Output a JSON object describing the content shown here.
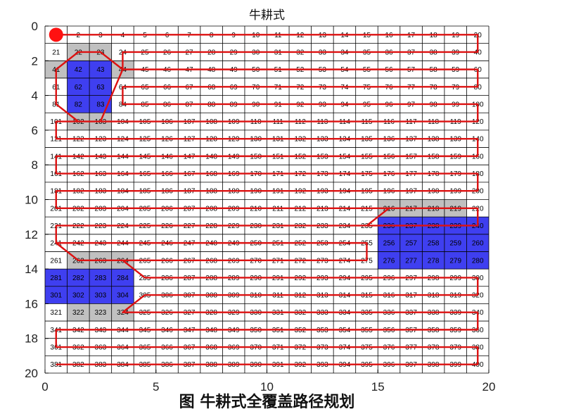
{
  "chart_data": {
    "type": "heatmap",
    "title": "牛耕式",
    "caption": "图  牛耕式全覆盖路径规划",
    "grid": {
      "cols": 20,
      "rows": 20
    },
    "xlim": [
      0,
      20
    ],
    "ylim": [
      0,
      20
    ],
    "y_reversed": true,
    "xticks": [
      0,
      5,
      10,
      15,
      20
    ],
    "yticks": [
      0,
      2,
      4,
      6,
      8,
      10,
      12,
      14,
      16,
      18,
      20
    ],
    "cell_labels": "1..400 row-major",
    "obstacle_cells": [
      42,
      43,
      62,
      63,
      82,
      83,
      236,
      237,
      238,
      239,
      240,
      256,
      257,
      258,
      259,
      260,
      276,
      277,
      278,
      279,
      280,
      281,
      282,
      283,
      284,
      301,
      302,
      303,
      304
    ],
    "inflated_cells": [
      22,
      23,
      41,
      44,
      102,
      103,
      216,
      217,
      218,
      219,
      262,
      263,
      264,
      322,
      323,
      324
    ],
    "start_point": [
      0.5,
      0.5
    ],
    "path": [
      [
        0.5,
        0.5
      ],
      [
        19.5,
        0.5
      ],
      [
        19.5,
        1.5
      ],
      [
        3.5,
        1.5
      ],
      [
        3.5,
        2.5
      ],
      [
        19.5,
        2.5
      ],
      [
        19.5,
        3.5
      ],
      [
        3.5,
        3.5
      ],
      [
        3.5,
        4.5
      ],
      [
        19.5,
        4.5
      ],
      [
        19.5,
        5.5
      ],
      [
        2.5,
        5.5
      ],
      [
        1.5,
        5.5
      ],
      [
        0.5,
        4.5
      ],
      [
        0.5,
        2.5
      ],
      [
        1.5,
        1.5
      ],
      [
        2.5,
        1.5
      ],
      [
        3.5,
        2.5
      ],
      [
        2.5,
        5.5
      ],
      [
        0.5,
        5.5
      ],
      [
        0.5,
        6.5
      ],
      [
        19.5,
        6.5
      ],
      [
        19.5,
        7.5
      ],
      [
        0.5,
        7.5
      ],
      [
        0.5,
        8.5
      ],
      [
        19.5,
        8.5
      ],
      [
        19.5,
        9.5
      ],
      [
        0.5,
        9.5
      ],
      [
        0.5,
        10.5
      ],
      [
        19.5,
        10.5
      ],
      [
        19.5,
        11.5
      ],
      [
        15.5,
        11.5
      ],
      [
        14.5,
        11.5
      ],
      [
        15.5,
        10.5
      ],
      [
        15.5,
        10.5
      ],
      [
        14.5,
        11.5
      ],
      [
        0.5,
        11.5
      ],
      [
        0.5,
        12.5
      ],
      [
        14.5,
        12.5
      ],
      [
        14.5,
        13.5
      ],
      [
        2.5,
        13.5
      ],
      [
        1.5,
        13.5
      ],
      [
        0.5,
        12.5
      ],
      [
        0.5,
        12.5
      ],
      [
        1.5,
        13.5
      ],
      [
        3.5,
        13.5
      ],
      [
        4.5,
        14.5
      ],
      [
        19.5,
        14.5
      ],
      [
        19.5,
        15.5
      ],
      [
        4.5,
        15.5
      ],
      [
        3.5,
        16.5
      ],
      [
        19.5,
        16.5
      ],
      [
        19.5,
        17.5
      ],
      [
        0.5,
        17.5
      ],
      [
        0.5,
        18.5
      ],
      [
        19.5,
        18.5
      ],
      [
        19.5,
        19.5
      ],
      [
        0.5,
        19.5
      ]
    ],
    "colors": {
      "obstacle": "#3f3ff0",
      "inflated": "#c0c0c0",
      "path": "#dd1111",
      "start": "#ff1111",
      "grid_line": "#000000"
    }
  }
}
